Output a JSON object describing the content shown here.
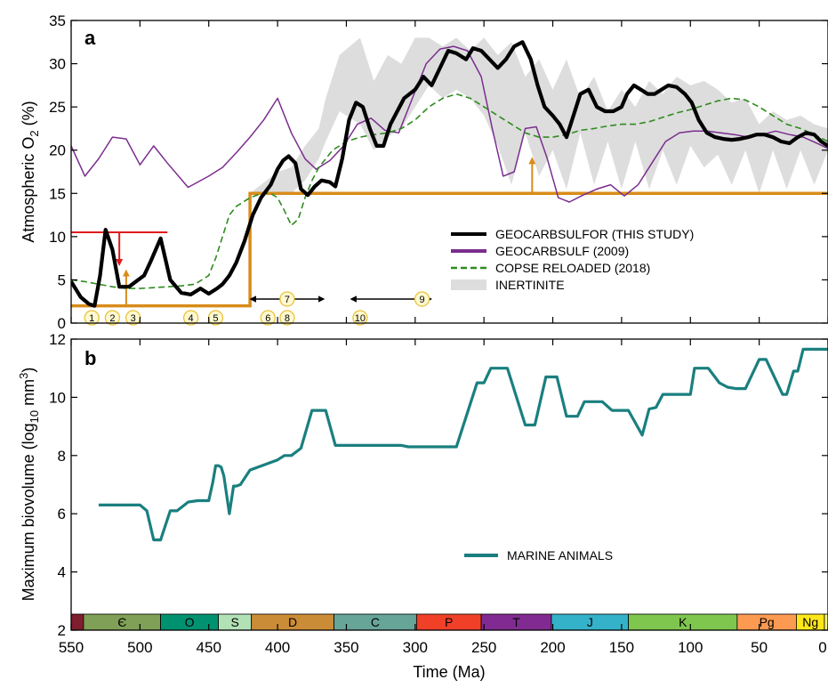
{
  "chart_data": [
    {
      "panel": "a",
      "type": "line",
      "xlabel": "Time (Ma)",
      "ylabel": "Atmospheric O2 (%)",
      "xlim": [
        550,
        0
      ],
      "ylim": [
        0,
        35
      ],
      "xticks": [
        550,
        500,
        450,
        400,
        350,
        300,
        250,
        200,
        150,
        100,
        50,
        0
      ],
      "yticks": [
        0,
        5,
        10,
        15,
        20,
        25,
        30,
        35
      ],
      "legend_position": "center-right",
      "series": [
        {
          "name": "GEOCARBSULFOR (THIS STUDY)",
          "color": "#000000",
          "style": "solid-thick",
          "x": [
            550,
            543,
            537,
            533,
            529,
            525,
            520,
            515,
            508,
            503,
            497,
            492,
            485,
            478,
            470,
            463,
            456,
            450,
            444,
            440,
            435,
            430,
            424,
            418,
            412,
            405,
            400,
            396,
            392,
            387,
            383,
            378,
            373,
            368,
            362,
            358,
            353,
            348,
            343,
            338,
            333,
            328,
            323,
            318,
            313,
            308,
            300,
            294,
            288,
            282,
            276,
            270,
            263,
            258,
            252,
            246,
            240,
            234,
            228,
            222,
            216,
            211,
            206,
            200,
            195,
            190,
            185,
            180,
            174,
            168,
            162,
            156,
            150,
            146,
            141,
            136,
            131,
            126,
            121,
            116,
            110,
            104,
            99,
            94,
            88,
            82,
            76,
            70,
            64,
            58,
            52,
            46,
            40,
            34,
            28,
            22,
            16,
            10,
            5,
            0
          ],
          "y": [
            4.8,
            3.0,
            2.2,
            2.0,
            5.5,
            10.8,
            8.5,
            4.2,
            4.2,
            4.8,
            5.5,
            7.2,
            9.8,
            5.0,
            3.5,
            3.3,
            4.0,
            3.4,
            4.0,
            4.5,
            5.5,
            7.0,
            9.5,
            12.5,
            14.5,
            16.0,
            17.8,
            18.8,
            19.3,
            18.5,
            15.5,
            14.8,
            15.8,
            16.5,
            16.3,
            15.8,
            19.0,
            23.5,
            25.5,
            25.0,
            22.5,
            20.5,
            20.5,
            23.0,
            24.5,
            26.0,
            27.0,
            28.5,
            27.5,
            29.5,
            31.5,
            31.2,
            30.5,
            31.8,
            31.5,
            30.5,
            29.5,
            30.5,
            32.0,
            32.5,
            30.5,
            27.5,
            25.0,
            24.0,
            23.0,
            21.5,
            24.0,
            26.5,
            27.0,
            25.0,
            24.5,
            24.5,
            25.0,
            26.5,
            27.5,
            27.0,
            26.5,
            26.5,
            27.0,
            27.5,
            27.3,
            26.5,
            25.5,
            23.5,
            22.0,
            21.5,
            21.3,
            21.2,
            21.3,
            21.5,
            21.8,
            21.8,
            21.5,
            21.0,
            20.8,
            21.5,
            22.0,
            21.8,
            21.0,
            20.5
          ]
        },
        {
          "name": "GEOCARBSULF (2009)",
          "color": "#7b2d8e",
          "style": "solid-thin",
          "x": [
            550,
            540,
            530,
            520,
            510,
            500,
            490,
            480,
            465,
            450,
            440,
            430,
            420,
            410,
            400,
            390,
            380,
            372,
            362,
            352,
            342,
            332,
            322,
            312,
            302,
            292,
            282,
            272,
            262,
            252,
            244,
            236,
            228,
            220,
            212,
            204,
            196,
            188,
            178,
            168,
            158,
            148,
            138,
            128,
            118,
            108,
            98,
            88,
            78,
            68,
            58,
            48,
            38,
            28,
            18,
            8,
            0
          ],
          "y": [
            20.5,
            17.0,
            19.0,
            21.5,
            21.3,
            18.3,
            20.5,
            18.5,
            15.7,
            17.0,
            18.0,
            19.7,
            21.5,
            23.5,
            26.0,
            22.0,
            19.0,
            17.8,
            18.8,
            20.5,
            23.0,
            23.7,
            22.3,
            22.0,
            26.0,
            30.0,
            31.7,
            32.0,
            31.5,
            28.5,
            22.5,
            17.0,
            17.5,
            22.5,
            22.7,
            19.0,
            14.5,
            14.0,
            14.8,
            15.5,
            16.0,
            14.7,
            16.0,
            18.5,
            21.0,
            22.0,
            22.2,
            22.2,
            22.0,
            21.8,
            21.5,
            21.8,
            22.2,
            21.8,
            21.5,
            20.8,
            20.2
          ]
        },
        {
          "name": "COPSE RELOADED (2018)",
          "color": "#2e8b1e",
          "style": "dashed",
          "x": [
            550,
            540,
            530,
            520,
            510,
            500,
            490,
            480,
            470,
            460,
            450,
            445,
            440,
            435,
            430,
            425,
            420,
            415,
            410,
            405,
            400,
            395,
            390,
            385,
            380,
            375,
            370,
            360,
            350,
            340,
            330,
            320,
            310,
            300,
            290,
            280,
            270,
            260,
            250,
            240,
            230,
            220,
            210,
            200,
            190,
            180,
            170,
            160,
            150,
            140,
            130,
            120,
            110,
            100,
            90,
            80,
            70,
            60,
            50,
            40,
            30,
            20,
            10,
            0
          ],
          "y": [
            5.0,
            4.8,
            4.5,
            4.2,
            4.0,
            4.0,
            4.1,
            4.2,
            4.3,
            4.5,
            5.5,
            7.5,
            10.0,
            12.5,
            13.5,
            14.0,
            14.5,
            14.8,
            15.0,
            15.0,
            14.5,
            13.0,
            11.3,
            12.0,
            14.5,
            16.5,
            18.0,
            20.0,
            21.0,
            21.5,
            21.8,
            22.0,
            22.5,
            23.5,
            25.0,
            26.0,
            26.5,
            26.0,
            25.0,
            24.0,
            23.0,
            22.0,
            21.5,
            21.5,
            21.8,
            22.3,
            22.5,
            22.8,
            23.0,
            23.0,
            23.3,
            23.8,
            24.3,
            24.7,
            25.2,
            25.7,
            26.0,
            25.8,
            25.0,
            24.0,
            23.0,
            22.5,
            21.8,
            21.0
          ]
        },
        {
          "name": "INERTINITE",
          "color": "#dddddd",
          "style": "band",
          "x": [
            420,
            400,
            390,
            380,
            370,
            365,
            355,
            340,
            330,
            320,
            310,
            300,
            290,
            280,
            270,
            260,
            250,
            240,
            230,
            220,
            210,
            200,
            190,
            180,
            170,
            160,
            150,
            140,
            130,
            120,
            110,
            100,
            90,
            80,
            70,
            60,
            50,
            40,
            30,
            20,
            10,
            0
          ],
          "y_low": [
            15.0,
            15.0,
            15.0,
            16.5,
            19.0,
            21.0,
            24.5,
            23.0,
            20.0,
            21.5,
            22.5,
            25.0,
            27.5,
            26.0,
            27.0,
            26.0,
            24.0,
            20.5,
            16.0,
            22.0,
            17.0,
            20.0,
            15.5,
            22.0,
            16.0,
            21.0,
            15.5,
            21.0,
            15.5,
            20.0,
            16.0,
            20.5,
            18.0,
            19.5,
            16.0,
            20.0,
            15.0,
            20.0,
            15.5,
            20.0,
            16.0,
            20.0
          ],
          "y_high": [
            15.0,
            17.5,
            18.0,
            20.5,
            22.5,
            26.0,
            31.0,
            33.0,
            28.0,
            31.0,
            30.0,
            33.0,
            33.0,
            32.0,
            33.0,
            31.5,
            33.0,
            31.0,
            32.5,
            28.5,
            30.5,
            27.0,
            30.5,
            26.0,
            28.5,
            24.5,
            27.0,
            25.0,
            28.0,
            26.5,
            28.5,
            27.5,
            28.0,
            27.0,
            25.5,
            26.0,
            23.0,
            24.5,
            23.5,
            24.0,
            23.0,
            22.5
          ]
        }
      ],
      "constraint_lines": [
        {
          "name": "minimum O2 constraint",
          "color": "#d98c1a",
          "x": [
            550,
            420,
            420,
            0
          ],
          "y": [
            2.0,
            2.0,
            15.0,
            15.0
          ],
          "arrows_up_at": [
            510,
            215
          ]
        },
        {
          "name": "maximum O2 constraint",
          "color": "#e01b1b",
          "x": [
            550,
            480
          ],
          "y": [
            10.5,
            10.5
          ],
          "arrow_down_at": 515
        }
      ],
      "events": [
        {
          "label": "1",
          "x": 535
        },
        {
          "label": "2",
          "x": 520
        },
        {
          "label": "3",
          "x": 505
        },
        {
          "label": "4",
          "x": 463
        },
        {
          "label": "5",
          "x": 445
        },
        {
          "label": "6",
          "x": 407
        },
        {
          "label": "7",
          "x": 393,
          "x_range": [
            418,
            368
          ]
        },
        {
          "label": "8",
          "x": 393
        },
        {
          "label": "9",
          "x": 295,
          "x_range": [
            345,
            290
          ]
        },
        {
          "label": "10",
          "x": 340,
          "x_range": [
            345,
            290
          ]
        }
      ]
    },
    {
      "panel": "b",
      "type": "line",
      "xlabel": "Time (Ma)",
      "ylabel": "Maximum biovolume (log10 mm3)",
      "xlim": [
        550,
        0
      ],
      "ylim": [
        2,
        12
      ],
      "xticks": [
        550,
        500,
        450,
        400,
        350,
        300,
        250,
        200,
        150,
        100,
        50,
        0
      ],
      "yticks": [
        2,
        4,
        6,
        8,
        10,
        12
      ],
      "legend_position": "center-right",
      "series": [
        {
          "name": "MARINE ANIMALS",
          "color": "#1a7f7f",
          "x": [
            530,
            505,
            500,
            495,
            490,
            486,
            485,
            478,
            473,
            465,
            458,
            450,
            447,
            445,
            443,
            441,
            439,
            435,
            432,
            430,
            427,
            420,
            400,
            395,
            390,
            383,
            375,
            370,
            365,
            358,
            330,
            310,
            305,
            290,
            280,
            270,
            255,
            252,
            250,
            245,
            240,
            233,
            220,
            213,
            205,
            202,
            197,
            190,
            182,
            177,
            171,
            164,
            157,
            150,
            145,
            135,
            130,
            125,
            120,
            112,
            100,
            97,
            92,
            87,
            79,
            73,
            67,
            63,
            60,
            50,
            47,
            45,
            33,
            30,
            25,
            22,
            18,
            13,
            10,
            5,
            0
          ],
          "y": [
            6.3,
            6.3,
            6.3,
            6.1,
            5.1,
            5.1,
            5.1,
            6.1,
            6.1,
            6.4,
            6.45,
            6.45,
            7.1,
            7.65,
            7.65,
            7.6,
            7.3,
            6.0,
            6.95,
            6.95,
            7.0,
            7.5,
            7.85,
            8.0,
            8.0,
            8.25,
            9.55,
            9.55,
            9.55,
            8.35,
            8.35,
            8.35,
            8.3,
            8.3,
            8.3,
            8.3,
            10.5,
            10.5,
            10.5,
            11.0,
            11.0,
            11.0,
            9.05,
            9.05,
            10.7,
            10.7,
            10.7,
            9.35,
            9.35,
            9.85,
            9.85,
            9.85,
            9.55,
            9.55,
            9.55,
            8.7,
            9.6,
            9.65,
            10.1,
            10.1,
            10.1,
            11.0,
            11.0,
            11.0,
            10.5,
            10.35,
            10.3,
            10.3,
            10.3,
            11.3,
            11.3,
            11.3,
            10.1,
            10.1,
            10.9,
            10.9,
            11.65,
            11.65,
            11.65,
            11.65,
            11.65
          ]
        }
      ],
      "geologic_periods": [
        {
          "label": "",
          "start": 550,
          "end": 541,
          "color": "#7f1e2e"
        },
        {
          "label": "Є",
          "start": 541,
          "end": 485,
          "color": "#7fa056"
        },
        {
          "label": "O",
          "start": 485,
          "end": 443,
          "color": "#009270"
        },
        {
          "label": "S",
          "start": 443,
          "end": 419,
          "color": "#b3e1b6"
        },
        {
          "label": "D",
          "start": 419,
          "end": 359,
          "color": "#cb8c37"
        },
        {
          "label": "C",
          "start": 359,
          "end": 299,
          "color": "#67a599"
        },
        {
          "label": "P",
          "start": 299,
          "end": 252,
          "color": "#f04028"
        },
        {
          "label": "T",
          "start": 252,
          "end": 201,
          "color": "#812b92"
        },
        {
          "label": "J",
          "start": 201,
          "end": 145,
          "color": "#34b2c9"
        },
        {
          "label": "K",
          "start": 145,
          "end": 66,
          "color": "#7fc64e"
        },
        {
          "label": "Pg",
          "start": 66,
          "end": 23,
          "color": "#fd9a52"
        },
        {
          "label": "Ng",
          "start": 23,
          "end": 2.6,
          "color": "#ffe619"
        },
        {
          "label": "",
          "start": 2.6,
          "end": 0,
          "color": "#f9f97f"
        }
      ]
    }
  ],
  "panels": {
    "a": {
      "label": "a",
      "ylabel_text": "Atmospheric O",
      "ylabel_sub": "2",
      "ylabel_end": " (%)"
    },
    "b": {
      "label": "b",
      "ylabel_text": "Maximum biovolume (log",
      "ylabel_sub": "10",
      "ylabel_mid": " mm",
      "ylabel_sup": "3",
      "ylabel_end": ")"
    }
  },
  "xaxis_label": "Time (Ma)"
}
